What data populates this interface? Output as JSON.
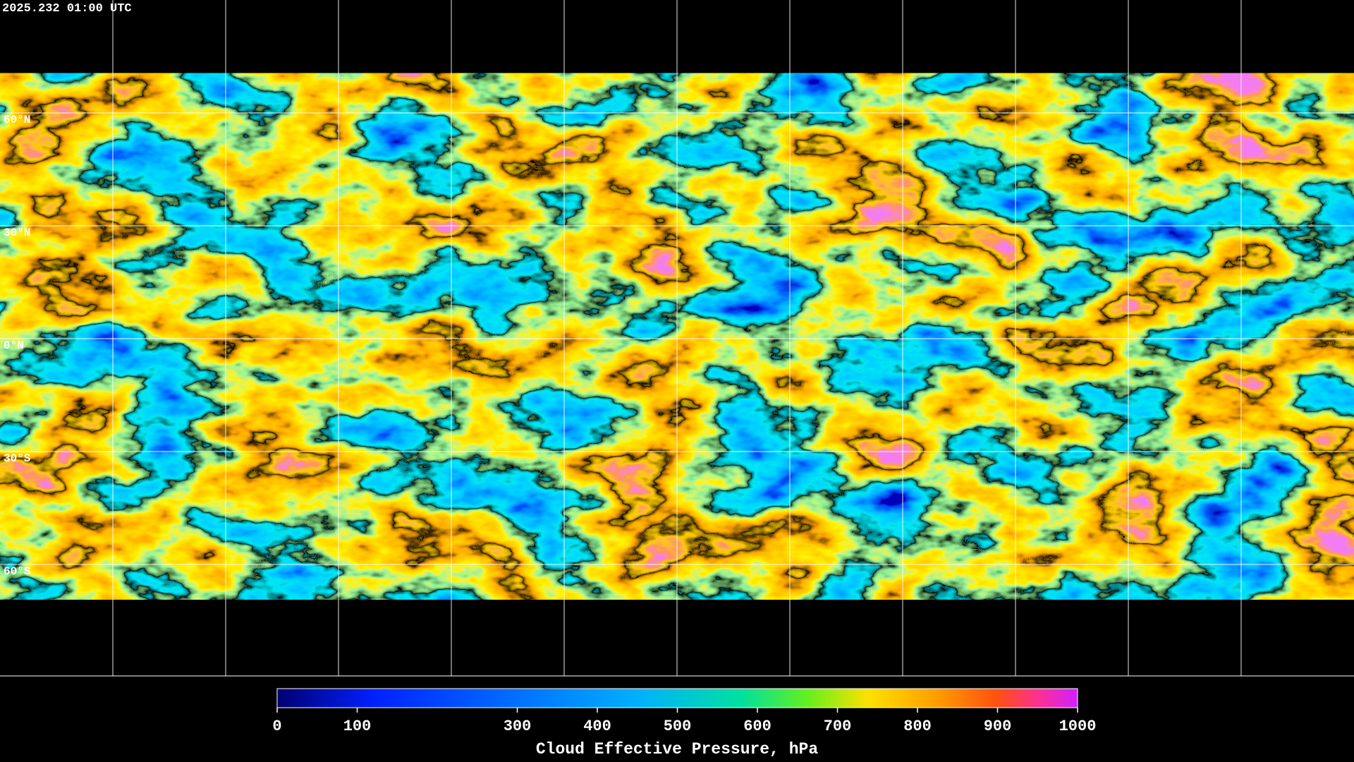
{
  "header": {
    "timestamp": "2025.232 01:00 UTC"
  },
  "map": {
    "lat_labels": [
      "60°N",
      "30°N",
      "0°N",
      "30°S",
      "60°S"
    ]
  },
  "chart_data": {
    "type": "colorbar",
    "title": "Cloud Effective Pressure, hPa",
    "xlim": [
      0,
      1000
    ],
    "xticks": [
      0,
      100,
      300,
      400,
      500,
      600,
      700,
      800,
      900,
      1000
    ]
  }
}
